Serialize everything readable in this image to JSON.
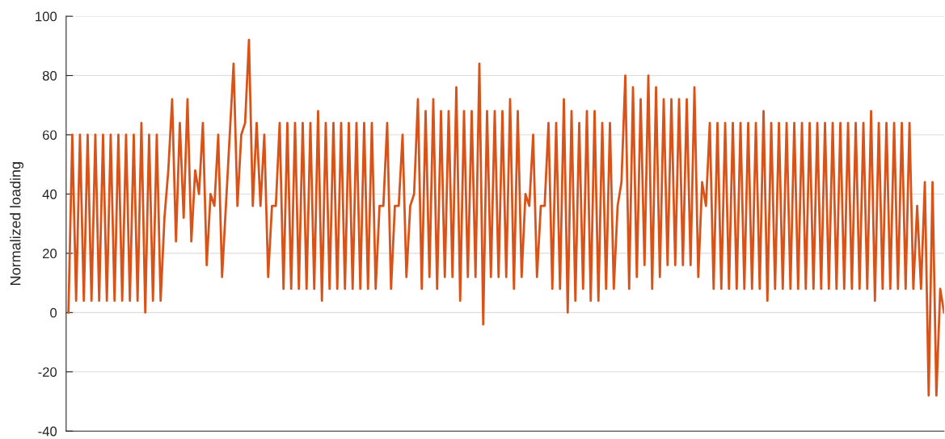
{
  "chart_data": {
    "type": "line",
    "ylabel": "Normalized loading",
    "categories": [
      null,
      null,
      null,
      null,
      null,
      null,
      null,
      null,
      null,
      null,
      null,
      null,
      null,
      null,
      null,
      null,
      null,
      null,
      null,
      null,
      null,
      null,
      null,
      null,
      null,
      null,
      null,
      null,
      null,
      null,
      null,
      null,
      null,
      null,
      null,
      null,
      null,
      null,
      null,
      null,
      null,
      null,
      null,
      null,
      null,
      null,
      null,
      null,
      null,
      null,
      null,
      null,
      null,
      null,
      null,
      null,
      null,
      null,
      null,
      null,
      null,
      null,
      null,
      null,
      null,
      null,
      null,
      null,
      null,
      null,
      null,
      null,
      null,
      null,
      null,
      null,
      null,
      null,
      null,
      null,
      null,
      null,
      null,
      null,
      null,
      null,
      null,
      null,
      null,
      null,
      null,
      null,
      null,
      null,
      null,
      null,
      null,
      null,
      null,
      null,
      null,
      null,
      null,
      null,
      null,
      null,
      null,
      null,
      null,
      null,
      null,
      null,
      null,
      null,
      null,
      null,
      null,
      null,
      null,
      null,
      null,
      null,
      null,
      null,
      null,
      null,
      null,
      null,
      null,
      null,
      null,
      null,
      null,
      null,
      null,
      null,
      null,
      null,
      null,
      null,
      null,
      null,
      null,
      null,
      null,
      null,
      null,
      null,
      null,
      null,
      null,
      null,
      null,
      null,
      null,
      null,
      null,
      null,
      null,
      null,
      null,
      null,
      null,
      null,
      null,
      null,
      null,
      null,
      null,
      null,
      null,
      null,
      null,
      null,
      null,
      null,
      null,
      null,
      null,
      null,
      null,
      null,
      null,
      null,
      null,
      null,
      null,
      null,
      null,
      null,
      null,
      null,
      null,
      null,
      null,
      null,
      null,
      null,
      null,
      null,
      null,
      null,
      null,
      null,
      null,
      null,
      null,
      null,
      null,
      null,
      null,
      null,
      null,
      null,
      null,
      null,
      null,
      null,
      null,
      null,
      null,
      null,
      null,
      null,
      null,
      null,
      null,
      null,
      null
    ],
    "series": [
      {
        "color": "#d95319",
        "values": [
          0,
          60,
          4,
          60,
          4,
          60,
          4,
          60,
          4,
          60,
          4,
          60,
          4,
          60,
          4,
          60,
          4,
          60,
          4,
          64,
          0,
          60,
          4,
          60,
          4,
          32,
          48,
          72,
          24,
          64,
          32,
          72,
          24,
          48,
          40,
          64,
          16,
          40,
          36,
          60,
          12,
          36,
          60,
          84,
          36,
          60,
          64,
          92,
          36,
          64,
          36,
          60,
          12,
          36,
          36,
          64,
          8,
          64,
          8,
          64,
          8,
          64,
          8,
          64,
          8,
          68,
          4,
          64,
          8,
          64,
          8,
          64,
          8,
          64,
          8,
          64,
          8,
          64,
          8,
          64,
          8,
          36,
          36,
          64,
          8,
          36,
          36,
          60,
          12,
          36,
          40,
          72,
          8,
          68,
          12,
          72,
          8,
          68,
          12,
          68,
          12,
          76,
          4,
          68,
          12,
          68,
          12,
          84,
          -4,
          68,
          12,
          68,
          12,
          68,
          12,
          72,
          8,
          68,
          12,
          40,
          36,
          60,
          12,
          36,
          36,
          64,
          8,
          64,
          8,
          72,
          0,
          68,
          4,
          64,
          8,
          68,
          4,
          68,
          4,
          64,
          8,
          64,
          8,
          36,
          44,
          80,
          8,
          76,
          12,
          72,
          16,
          80,
          8,
          76,
          12,
          72,
          16,
          72,
          16,
          72,
          16,
          72,
          16,
          76,
          12,
          44,
          36,
          64,
          8,
          64,
          8,
          64,
          8,
          64,
          8,
          64,
          8,
          64,
          8,
          64,
          8,
          68,
          4,
          64,
          8,
          64,
          8,
          64,
          8,
          64,
          8,
          64,
          8,
          64,
          8,
          64,
          8,
          64,
          8,
          64,
          8,
          64,
          8,
          64,
          8,
          64,
          8,
          64,
          8,
          68,
          4,
          64,
          8,
          64,
          8,
          64,
          8,
          64,
          8,
          64,
          8,
          36,
          8,
          44,
          -28,
          44,
          -28,
          8,
          0
        ]
      }
    ],
    "ylim": [
      -40,
      100
    ],
    "yticks": [
      -40,
      -20,
      0,
      20,
      40,
      60,
      80,
      100
    ],
    "grid": "y",
    "line_style": "solid",
    "marker": "none"
  }
}
